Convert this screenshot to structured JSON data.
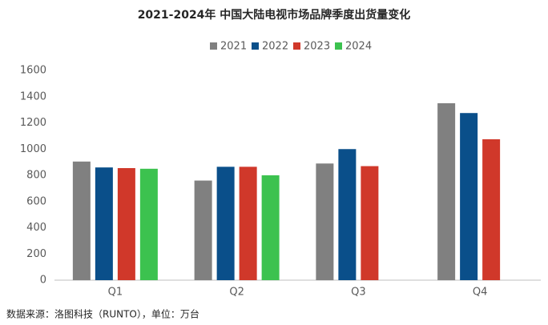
{
  "chart_data": {
    "type": "bar",
    "title": "2021-2024年 中国大陆电视市场品牌季度出货量变化",
    "categories": [
      "Q1",
      "Q2",
      "Q3",
      "Q4"
    ],
    "series": [
      {
        "name": "2021",
        "color": "#808080",
        "values": [
          905,
          760,
          890,
          1350
        ]
      },
      {
        "name": "2022",
        "color": "#0a4f8a",
        "values": [
          860,
          865,
          1000,
          1275
        ]
      },
      {
        "name": "2023",
        "color": "#d0382a",
        "values": [
          855,
          865,
          870,
          1075
        ]
      },
      {
        "name": "2024",
        "color": "#3cc24f",
        "values": [
          850,
          800,
          null,
          null
        ]
      }
    ],
    "ylim": [
      0,
      1600
    ],
    "yticks": [
      0,
      200,
      400,
      600,
      800,
      1000,
      1200,
      1400,
      1600
    ],
    "grid": false,
    "legend": "top",
    "source": "数据来源：洛图科技（RUNTO），单位：万台"
  }
}
